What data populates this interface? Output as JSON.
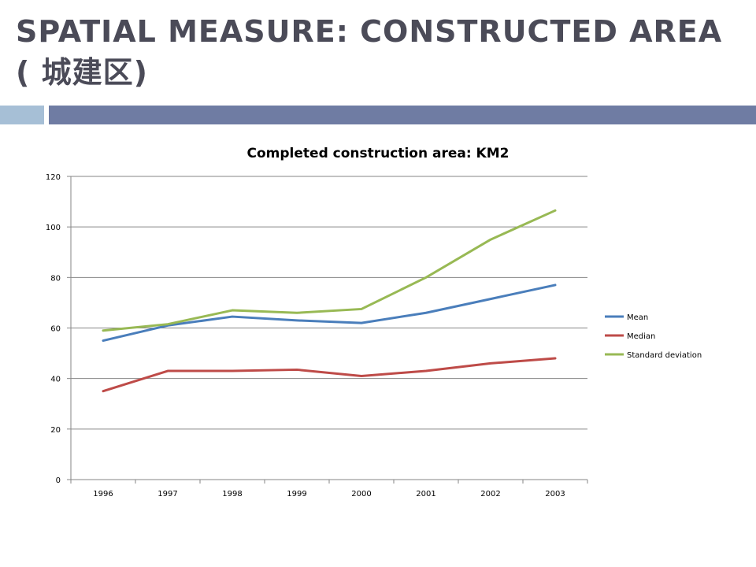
{
  "slide": {
    "title": "SPATIAL MEASURE: CONSTRUCTED AREA ( 城建区)"
  },
  "colors": {
    "title_text": "#4b4b58",
    "accent_bar_light": "#a6bfd6",
    "accent_bar_dark": "#6f7ca3"
  },
  "chart_data": {
    "type": "line",
    "title": "Completed construction area: KM2",
    "xlabel": "",
    "ylabel": "",
    "categories": [
      "1996",
      "1997",
      "1998",
      "1999",
      "2000",
      "2001",
      "2002",
      "2003"
    ],
    "ylim": [
      0,
      120
    ],
    "yticks": [
      0,
      20,
      40,
      60,
      80,
      100,
      120
    ],
    "grid": true,
    "legend_position": "right",
    "series": [
      {
        "name": "Mean",
        "color": "#4a7ebb",
        "values": [
          55,
          61,
          64.5,
          63,
          62,
          66,
          71.5,
          77
        ]
      },
      {
        "name": "Median",
        "color": "#be4b48",
        "values": [
          35,
          43,
          43,
          43.5,
          41,
          43,
          46,
          48
        ]
      },
      {
        "name": "Standard deviation",
        "color": "#98b954",
        "values": [
          59,
          61.5,
          67,
          66,
          67.5,
          80,
          95,
          106.5
        ]
      }
    ]
  }
}
